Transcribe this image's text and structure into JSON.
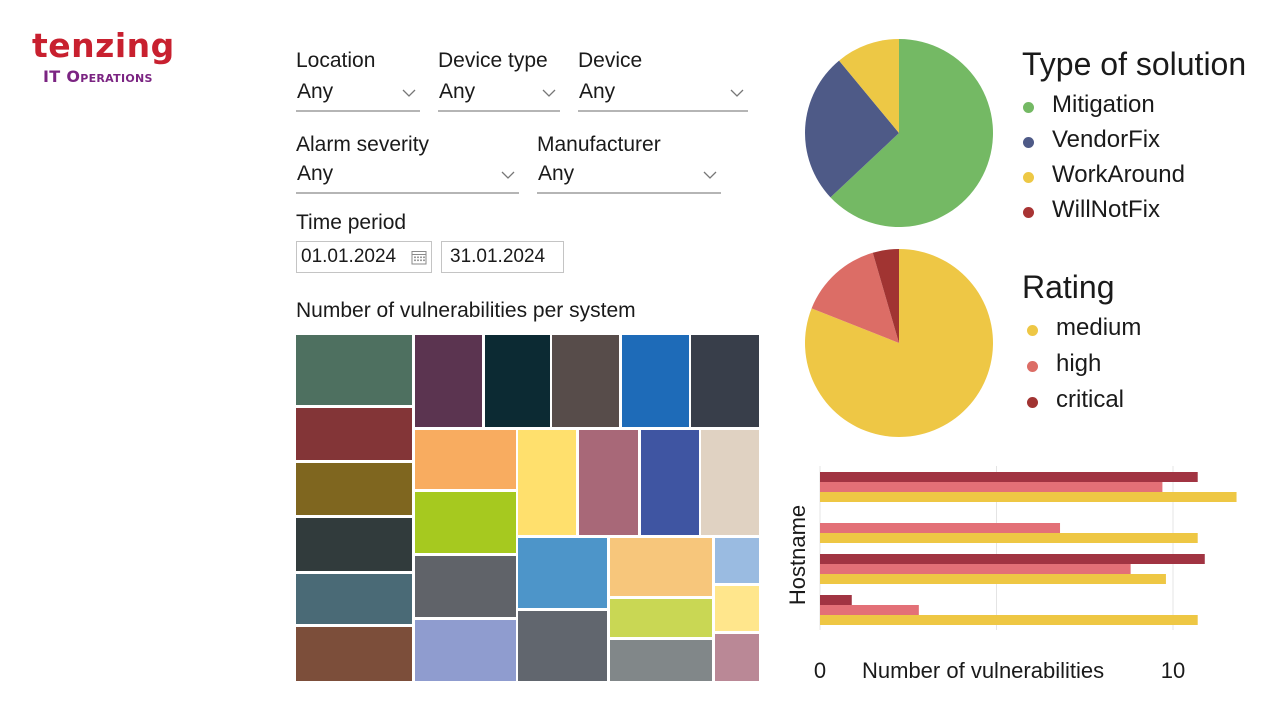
{
  "logo": {
    "word": "tenzing",
    "sub": "IT Operations"
  },
  "filters": {
    "location": {
      "label": "Location",
      "value": "Any"
    },
    "device_type": {
      "label": "Device type",
      "value": "Any"
    },
    "device": {
      "label": "Device",
      "value": "Any"
    },
    "alarm_severity": {
      "label": "Alarm severity",
      "value": "Any"
    },
    "manufacturer": {
      "label": "Manufacturer",
      "value": "Any"
    },
    "time_period": {
      "label": "Time period",
      "start": "01.01.2024",
      "end": "31.01.2024"
    }
  },
  "treemap": {
    "title": "Number of vulnerabilities per system",
    "colors": [
      "#4e7060",
      "#5b3450",
      "#0c2a33",
      "#574c4a",
      "#1e6bb8",
      "#383e4a",
      "#833537",
      "#7f661f",
      "#313b3c",
      "#4a6a76",
      "#7c4e3a",
      "#f8ac60",
      "#ffe06d",
      "#a86878",
      "#3f55a2",
      "#e0d2c2",
      "#a6c91f",
      "#4d95c9",
      "#f7c67b",
      "#9abbe1",
      "#606369",
      "#c9d754",
      "#ffe68c",
      "#8f9ccf",
      "#61666e",
      "#818789",
      "#ba8896"
    ]
  },
  "chart_data": [
    {
      "type": "pie",
      "title": "Type of solution",
      "labels": [
        "Mitigation",
        "VendorFix",
        "WorkAround",
        "WillNotFix"
      ],
      "values": [
        63,
        26,
        11,
        0
      ],
      "colors": [
        "#74b964",
        "#4e5a87",
        "#edc845",
        "#a83434"
      ],
      "legend": "right"
    },
    {
      "type": "pie",
      "title": "Rating",
      "labels": [
        "medium",
        "high",
        "critical"
      ],
      "values": [
        81,
        14.5,
        4.5
      ],
      "colors": [
        "#eec745",
        "#dc6d66",
        "#a13432"
      ],
      "legend": "right"
    },
    {
      "type": "bar",
      "orientation": "horizontal",
      "ylabel": "Hostname",
      "xlabel": "Number of vulnerabilities",
      "x_ticks": [
        "0",
        "10"
      ],
      "xlim": [
        0,
        13
      ],
      "categories": [
        "",
        "",
        "",
        ""
      ],
      "series": [
        {
          "values": [
            10.7,
            0,
            10.9,
            0.9
          ],
          "color": "#a13442"
        },
        {
          "values": [
            9.7,
            6.8,
            8.8,
            2.8
          ],
          "color": "#e37077"
        },
        {
          "values": [
            11.8,
            10.7,
            9.8,
            10.7
          ],
          "color": "#eec744"
        }
      ]
    }
  ]
}
